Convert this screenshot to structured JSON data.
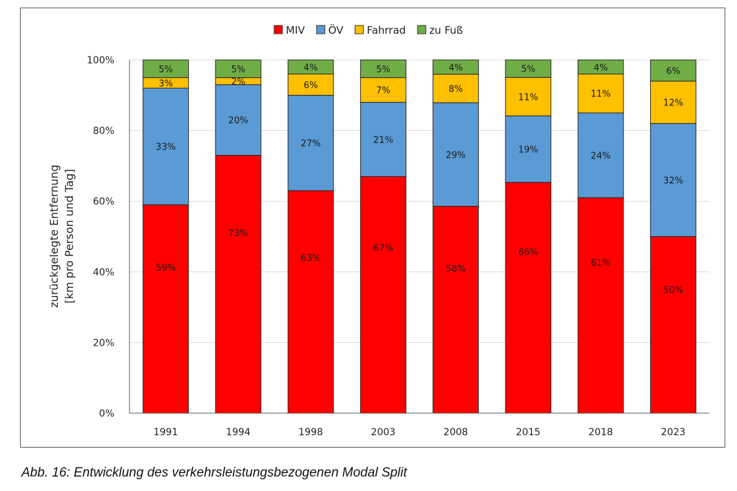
{
  "chart_data": {
    "type": "bar",
    "stacked": true,
    "title": "",
    "xlabel": "",
    "ylabel": [
      "zurückgelegte Entfernung",
      "[km pro Person und Tag]"
    ],
    "ylim": [
      0,
      100
    ],
    "yticks": [
      0,
      20,
      40,
      60,
      80,
      100
    ],
    "ytick_labels": [
      "0%",
      "20%",
      "40%",
      "60%",
      "80%",
      "100%"
    ],
    "grid": true,
    "legend_position": "top-center",
    "categories": [
      "1991",
      "1994",
      "1998",
      "2003",
      "2008",
      "2015",
      "2018",
      "2023"
    ],
    "series": [
      {
        "name": "MIV",
        "color": "#ff0000",
        "values": [
          59,
          73,
          63,
          67,
          58,
          66,
          61,
          50
        ],
        "labels": [
          "59%",
          "73%",
          "63%",
          "67%",
          "58%",
          "66%",
          "61%",
          "50%"
        ]
      },
      {
        "name": "ÖV",
        "color": "#5b9bd5",
        "values": [
          33,
          20,
          27,
          21,
          29,
          19,
          24,
          32
        ],
        "labels": [
          "33%",
          "20%",
          "27%",
          "21%",
          "29%",
          "19%",
          "24%",
          "32%"
        ]
      },
      {
        "name": "Fahrrad",
        "color": "#ffc000",
        "values": [
          3,
          2,
          6,
          7,
          8,
          11,
          11,
          12
        ],
        "labels": [
          "3%",
          "2%",
          "6%",
          "7%",
          "8%",
          "11%",
          "11%",
          "12%"
        ]
      },
      {
        "name": "zu Fuß",
        "color": "#70ad47",
        "values": [
          5,
          5,
          4,
          5,
          4,
          5,
          4,
          6
        ],
        "labels": [
          "5%",
          "5%",
          "4%",
          "5%",
          "4%",
          "5%",
          "4%",
          "6%"
        ]
      }
    ]
  },
  "caption": "Abb. 16: Entwicklung des verkehrsleistungsbezogenen Modal Split"
}
